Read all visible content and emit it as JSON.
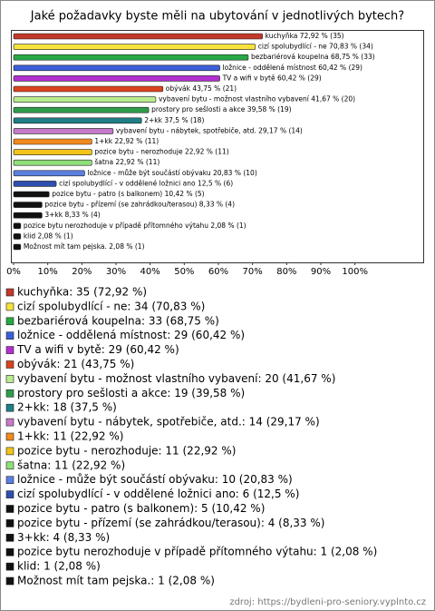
{
  "chart_data": {
    "type": "hbar",
    "title": "Jaké požadavky byste měli na ubytování v jednotlivých bytech?",
    "values": [
      72.92,
      70.83,
      68.75,
      60.42,
      60.42,
      43.75,
      41.67,
      39.58,
      37.5,
      29.17,
      22.92,
      22.92,
      22.92,
      20.83,
      12.5,
      10.42,
      8.33,
      8.33,
      2.08,
      2.08,
      2.08
    ],
    "value_labels": [
      "kuchyňka 72,92 % (35)",
      "cizí spolubydlící - ne 70,83 % (34)",
      "bezbariérová koupelna 68,75 % (33)",
      "ložnice - oddělená místnost 60,42 % (29)",
      "TV a wifi v bytě 60,42 % (29)",
      "obývák 43,75 % (21)",
      "vybavení bytu - možnost vlastního vybavení 41,67 % (20)",
      "prostory pro sešlosti a akce 39,58 % (19)",
      "2+kk 37,5 % (18)",
      "vybavení bytu - nábytek, spotřebiče, atd. 29,17 % (14)",
      "1+kk 22,92 % (11)",
      "pozice bytu - nerozhoduje 22,92 % (11)",
      "šatna 22,92 % (11)",
      "ložnice - může být součástí obývaku 20,83 % (10)",
      "cizí spolubydlící - v oddělené ložnici ano 12,5 % (6)",
      "pozice bytu - patro (s balkonem) 10,42 % (5)",
      "pozice bytu - přízemí (se zahrádkou/terasou) 8,33 % (4)",
      "3+kk 8,33 % (4)",
      "pozice bytu nerozhoduje v případě přítomného výtahu 2,08 % (1)",
      "klid 2,08 % (1)",
      "Možnost mít tam pejska. 2,08 % (1)"
    ],
    "colors": [
      "#c0392b",
      "#f5e23a",
      "#27a844",
      "#3b5fd9",
      "#b12fd0",
      "#d9431e",
      "#b8ec8e",
      "#2f9c4a",
      "#1f7f86",
      "#c77ac9",
      "#f0891e",
      "#f2c418",
      "#8fe07a",
      "#5b7fe0",
      "#2e4fb0",
      "#111111",
      "#111111",
      "#111111",
      "#111111",
      "#111111",
      "#111111"
    ],
    "legend": [
      "kuchyňka: 35 (72,92 %)",
      "cizí spolubydlící - ne: 34 (70,83 %)",
      "bezbariérová koupelna: 33 (68,75 %)",
      "ložnice - oddělená místnost: 29 (60,42 %)",
      "TV a wifi v bytě: 29 (60,42 %)",
      "obývák: 21 (43,75 %)",
      "vybavení bytu - možnost vlastního vybavení: 20 (41,67 %)",
      "prostory pro sešlosti a akce: 19 (39,58 %)",
      "2+kk: 18 (37,5 %)",
      "vybavení bytu - nábytek, spotřebiče, atd.: 14 (29,17 %)",
      "1+kk: 11 (22,92 %)",
      "pozice bytu - nerozhoduje: 11 (22,92 %)",
      "šatna: 11 (22,92 %)",
      "ložnice - může být součástí obývaku: 10 (20,83 %)",
      "cizí spolubydlící - v oddělené ložnici ano: 6 (12,5 %)",
      "pozice bytu - patro (s balkonem): 5 (10,42 %)",
      "pozice bytu - přízemí (se zahrádkou/terasou): 4 (8,33 %)",
      "3+kk: 4 (8,33 %)",
      "pozice bytu nerozhoduje v případě přítomného výtahu: 1 (2,08 %)",
      "klid: 1 (2,08 %)",
      "Možnost mít tam pejska.: 1 (2,08 %)"
    ],
    "xlim": [
      0,
      120
    ],
    "xticks": [
      {
        "value": 0,
        "label": "0%"
      },
      {
        "value": 10,
        "label": "10%"
      },
      {
        "value": 20,
        "label": "20%"
      },
      {
        "value": 30,
        "label": "30%"
      },
      {
        "value": 40,
        "label": "40%"
      },
      {
        "value": 50,
        "label": "50%"
      },
      {
        "value": 60,
        "label": "60%"
      },
      {
        "value": 70,
        "label": "70%"
      },
      {
        "value": 80,
        "label": "80%"
      },
      {
        "value": 90,
        "label": "90%"
      },
      {
        "value": 100,
        "label": "100%"
      }
    ],
    "source": "zdroj: https://bydleni-pro-seniory.vyplnto.cz"
  }
}
